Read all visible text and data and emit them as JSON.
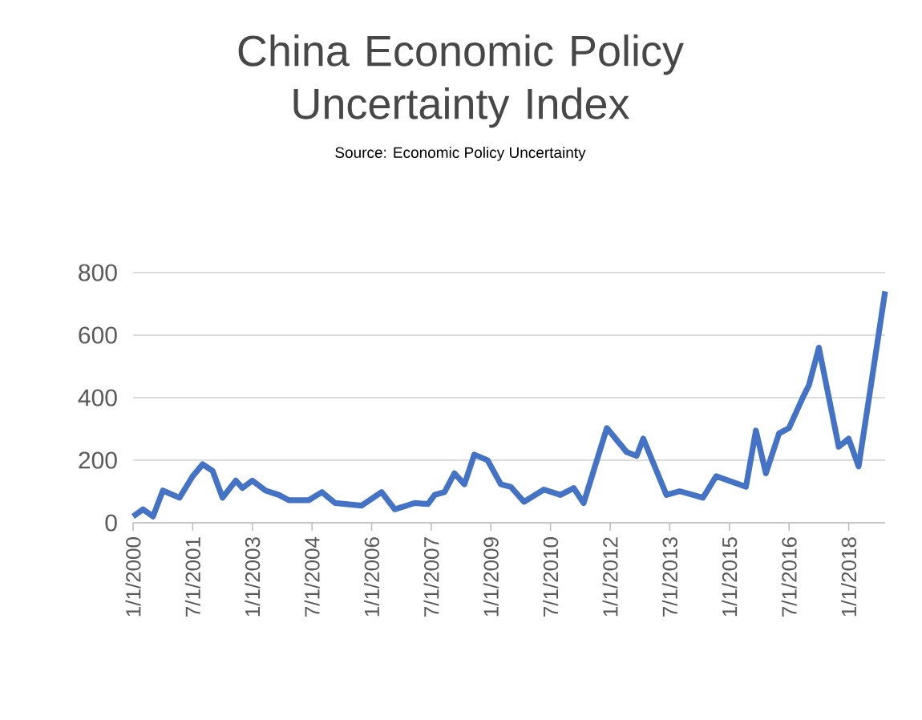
{
  "chart_data": {
    "type": "line",
    "title": "China Economic Policy Uncertainty Index",
    "subtitle": "Source: Economic Policy Uncertainty",
    "x": [
      "2000-01",
      "2000-04",
      "2000-07",
      "2000-10",
      "2001-03",
      "2001-07",
      "2001-10",
      "2002-01",
      "2002-04",
      "2002-08",
      "2002-10",
      "2003-01",
      "2003-05",
      "2003-09",
      "2003-12",
      "2004-06",
      "2004-10",
      "2005-02",
      "2005-10",
      "2006-04",
      "2006-08",
      "2007-02",
      "2007-06",
      "2007-08",
      "2007-11",
      "2008-02",
      "2008-05",
      "2008-08",
      "2008-12",
      "2009-04",
      "2009-07",
      "2009-11",
      "2010-05",
      "2010-10",
      "2011-02",
      "2011-05",
      "2011-12",
      "2012-06",
      "2012-09",
      "2012-11",
      "2013-06",
      "2013-10",
      "2014-05",
      "2014-09",
      "2015-06",
      "2015-09",
      "2015-12",
      "2016-04",
      "2016-07",
      "2016-11",
      "2017-01",
      "2017-04",
      "2017-10",
      "2018-01",
      "2018-04",
      "2018-07",
      "2018-12"
    ],
    "values": [
      20,
      43,
      20,
      103,
      80,
      149,
      187,
      166,
      80,
      135,
      111,
      135,
      103,
      89,
      72,
      72,
      98,
      63,
      55,
      98,
      43,
      63,
      60,
      89,
      98,
      158,
      123,
      218,
      200,
      123,
      115,
      67,
      106,
      89,
      111,
      63,
      303,
      226,
      214,
      269,
      89,
      101,
      80,
      149,
      115,
      295,
      158,
      286,
      303,
      397,
      440,
      560,
      243,
      269,
      180,
      389,
      740
    ],
    "color": "#4472c4",
    "xlim": [
      "2000-01",
      "2018-12"
    ],
    "xticks": [
      {
        "value": "2000-01-01",
        "label": "1/1/2000"
      },
      {
        "value": "2001-07-01",
        "label": "7/1/2001"
      },
      {
        "value": "2003-01-01",
        "label": "1/1/2003"
      },
      {
        "value": "2004-07-01",
        "label": "7/1/2004"
      },
      {
        "value": "2006-01-01",
        "label": "1/1/2006"
      },
      {
        "value": "2007-07-01",
        "label": "7/1/2007"
      },
      {
        "value": "2009-01-01",
        "label": "1/1/2009"
      },
      {
        "value": "2010-07-01",
        "label": "7/1/2010"
      },
      {
        "value": "2012-01-01",
        "label": "1/1/2012"
      },
      {
        "value": "2013-07-01",
        "label": "7/1/2013"
      },
      {
        "value": "2015-01-01",
        "label": "1/1/2015"
      },
      {
        "value": "2016-07-01",
        "label": "7/1/2016"
      },
      {
        "value": "2018-01-01",
        "label": "1/1/2018"
      }
    ],
    "ylim": [
      0,
      800
    ],
    "yticks": [
      0,
      200,
      400,
      600,
      800
    ],
    "grid": "y"
  }
}
